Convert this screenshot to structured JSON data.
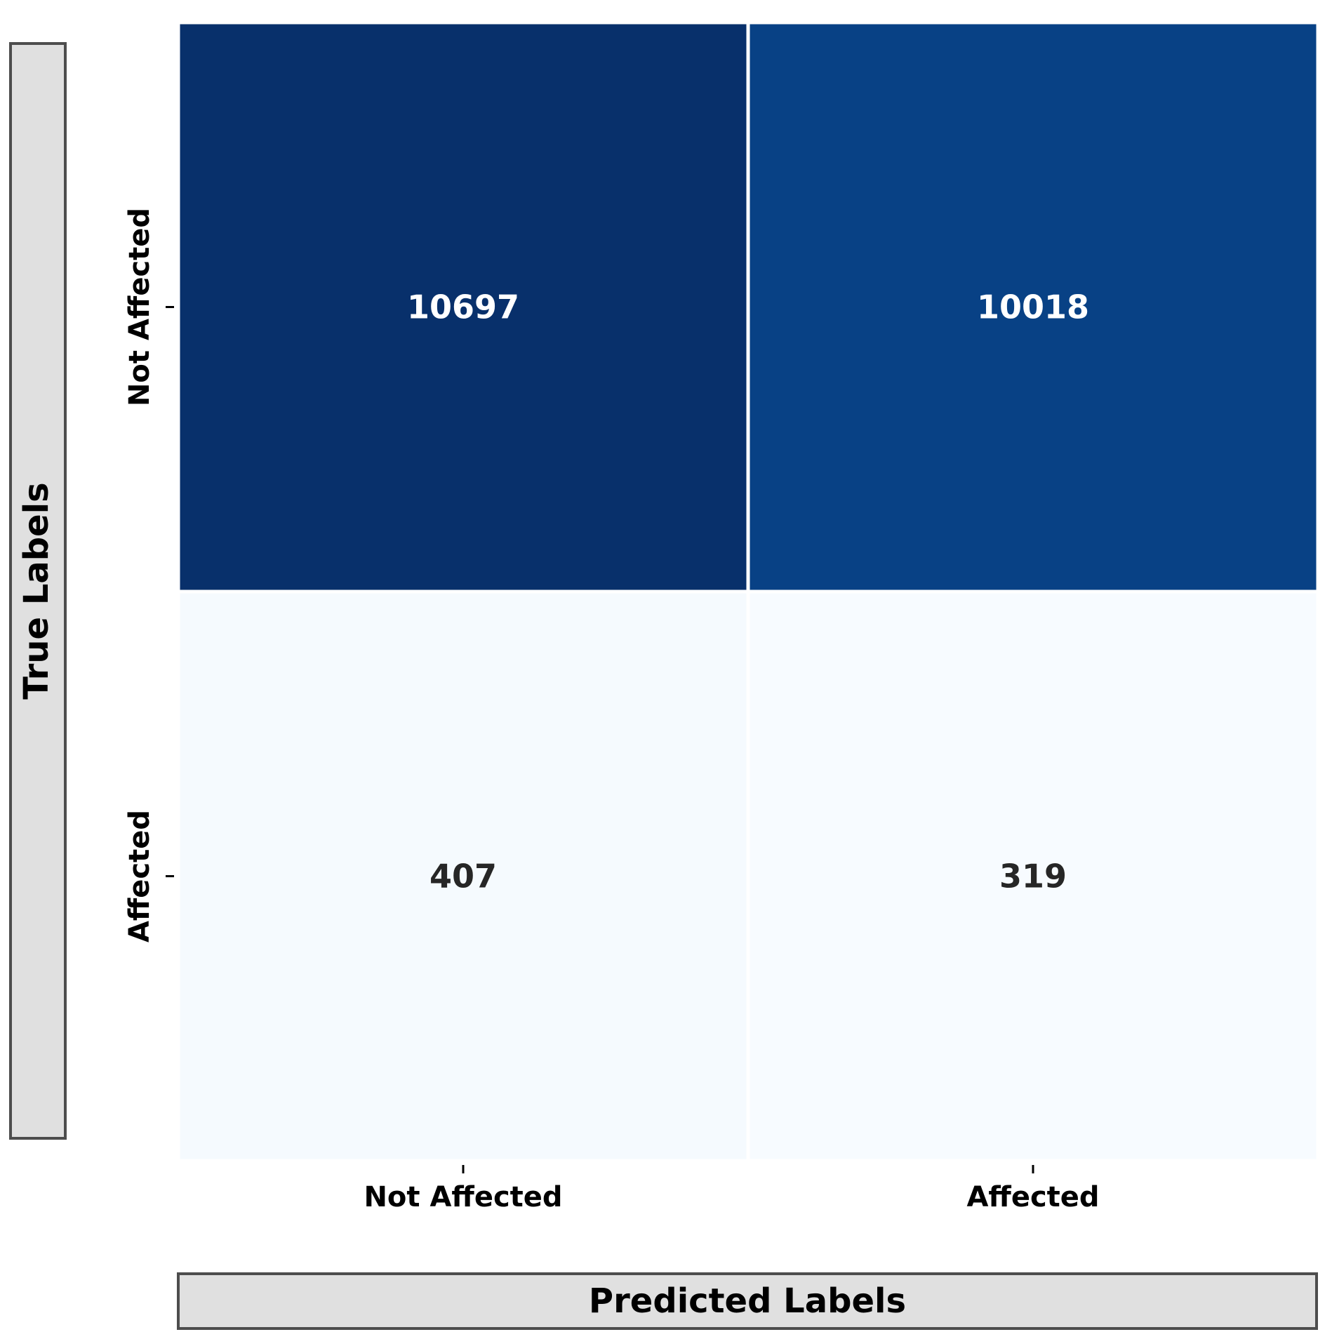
{
  "chart_data": {
    "type": "heatmap",
    "title": "",
    "xlabel": "Predicted Labels",
    "ylabel": "True Labels",
    "x_categories": [
      "Not Affected",
      "Affected"
    ],
    "y_categories": [
      "Not Affected",
      "Affected"
    ],
    "values": [
      [
        10697,
        10018
      ],
      [
        407,
        319
      ]
    ],
    "colormap": "Blues",
    "colors": {
      "dark_text": "#262626",
      "light_text": "#ffffff",
      "label_box_fill": "#e0e0e0",
      "label_box_border": "#4d4d4d"
    }
  }
}
